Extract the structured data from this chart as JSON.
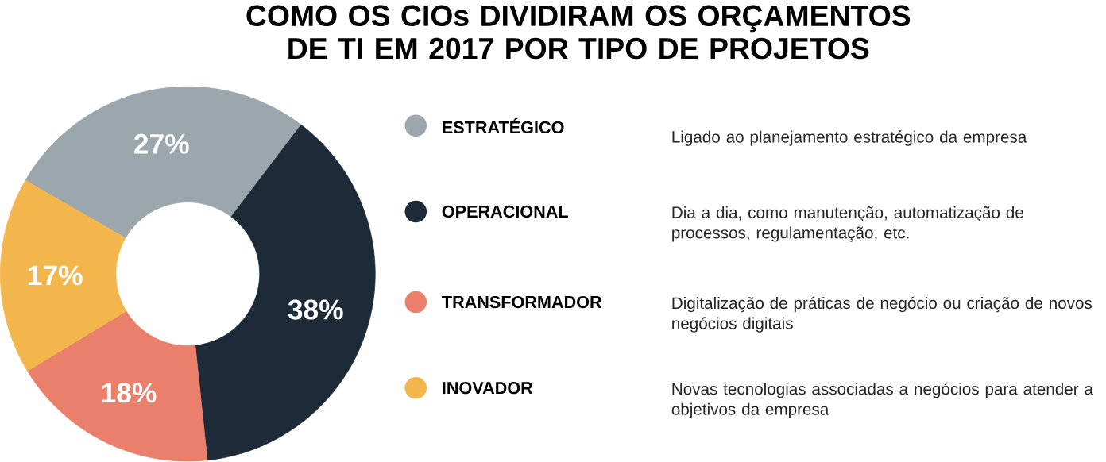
{
  "chart_data": {
    "type": "donut",
    "title": "COMO OS CIOs DIVIDIRAM OS ORÇAMENTOS DE TI EM 2017 POR TIPO DE PROJETOS",
    "categories": [
      "ESTRATÉGICO",
      "OPERACIONAL",
      "TRANSFORMADOR",
      "INOVADOR"
    ],
    "values": [
      27,
      38,
      18,
      17
    ],
    "value_labels": [
      "27%",
      "38%",
      "18%",
      "17%"
    ],
    "colors": [
      "#9ba6ad",
      "#1d2b39",
      "#ea806b",
      "#f3b64c"
    ],
    "legend": "right",
    "annotations": [
      "Ligado ao planejamento estratégico da empresa",
      "Dia a dia, como manutenção, automatização de processos, regulamentação, etc.",
      "Digitalização de práticas de negócio ou criação de novos negócios digitais",
      "Novas tecnologias associadas a negócios para atender a objetivos da empresa"
    ]
  }
}
